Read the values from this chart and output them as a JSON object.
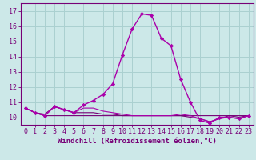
{
  "xlabel": "Windchill (Refroidissement éolien,°C)",
  "x_values": [
    0,
    1,
    2,
    3,
    4,
    5,
    6,
    7,
    8,
    9,
    10,
    11,
    12,
    13,
    14,
    15,
    16,
    17,
    18,
    19,
    20,
    21,
    22,
    23
  ],
  "series_main": [
    10.6,
    10.3,
    10.1,
    10.7,
    10.5,
    10.3,
    10.8,
    11.1,
    11.5,
    12.2,
    14.1,
    15.8,
    16.8,
    16.7,
    15.2,
    14.7,
    12.5,
    11.0,
    9.8,
    9.6,
    10.0,
    10.0,
    9.9,
    10.1
  ],
  "series_flat1": [
    10.6,
    10.3,
    10.1,
    10.1,
    10.1,
    10.1,
    10.1,
    10.1,
    10.1,
    10.1,
    10.1,
    10.1,
    10.1,
    10.1,
    10.1,
    10.1,
    10.1,
    10.1,
    10.1,
    10.1,
    10.1,
    10.1,
    10.1,
    10.1
  ],
  "series_flat2": [
    10.6,
    10.3,
    10.2,
    10.7,
    10.5,
    10.3,
    10.3,
    10.3,
    10.2,
    10.2,
    10.1,
    10.1,
    10.1,
    10.1,
    10.1,
    10.1,
    10.1,
    10.0,
    9.9,
    9.7,
    9.9,
    10.1,
    10.0,
    10.1
  ],
  "series_flat3": [
    10.6,
    10.3,
    10.1,
    10.7,
    10.5,
    10.3,
    10.6,
    10.6,
    10.4,
    10.3,
    10.2,
    10.1,
    10.1,
    10.1,
    10.1,
    10.1,
    10.2,
    10.1,
    9.9,
    9.7,
    9.9,
    10.0,
    9.9,
    10.1
  ],
  "ylim": [
    9.5,
    17.5
  ],
  "yticks": [
    10,
    11,
    12,
    13,
    14,
    15,
    16,
    17
  ],
  "xlim": [
    -0.5,
    23.5
  ],
  "bg_color": "#cce8e8",
  "grid_color": "#aad0d0",
  "color_dark": "#770077",
  "color_bright": "#aa00aa",
  "xlabel_fontsize": 6.5,
  "tick_fontsize": 6.0
}
